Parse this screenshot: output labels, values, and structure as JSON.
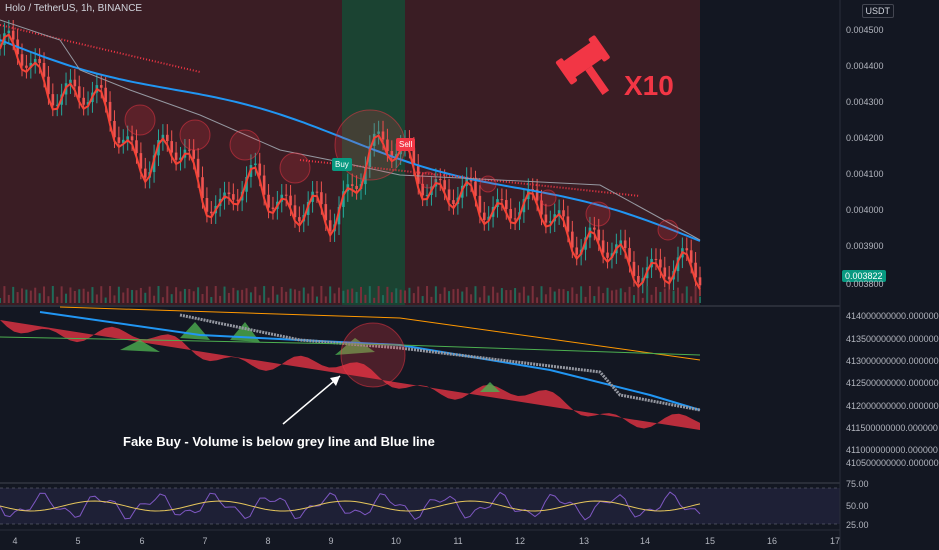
{
  "header": {
    "title": "Holo / TetherUS, 1h, BINANCE",
    "currency": "USDT"
  },
  "price_tag": "0.003822",
  "signals": {
    "buy": "Buy",
    "sell": "Sell"
  },
  "badge": "X10",
  "annotation": "Fake Buy - Volume is below grey line and Blue line",
  "colors": {
    "bg": "#131722",
    "bull": "#26a69a",
    "bear": "#ef5350",
    "blue": "#2196f3",
    "green_fill": "#4caf50",
    "red_fill": "#f23645"
  },
  "chart_data": [
    {
      "type": "line",
      "title": "Holo / TetherUS, 1h, BINANCE",
      "x_ticks": [
        "4",
        "5",
        "6",
        "7",
        "8",
        "9",
        "10",
        "11",
        "12",
        "13",
        "14",
        "15",
        "16",
        "17"
      ],
      "y_ticks": [
        "0.004500",
        "0.004400",
        "0.004300",
        "0.004200",
        "0.004100",
        "0.004000",
        "0.003900",
        "0.003800"
      ],
      "last_price": 0.003822,
      "series": [
        {
          "name": "",
          "values": [
            0.00448,
            0.0044,
            0.00435,
            0.00428,
            0.00415,
            0.00418,
            0.00402,
            0.0041,
            0.00403,
            0.00398,
            0.0042,
            0.00416,
            0.00408,
            0.00402,
            0.00405,
            0.00398,
            0.00395,
            0.00385,
            0.00388,
            0.003822
          ]
        }
      ]
    },
    {
      "type": "area",
      "y_ticks": [
        "414000000000.000000",
        "413500000000.000000",
        "413000000000.000000",
        "412500000000.000000",
        "412000000000.000000",
        "411500000000.000000",
        "411000000000.000000",
        "410500000000.000000"
      ]
    },
    {
      "type": "line",
      "y_ticks": [
        "75.00",
        "50.00",
        "25.00"
      ]
    }
  ]
}
